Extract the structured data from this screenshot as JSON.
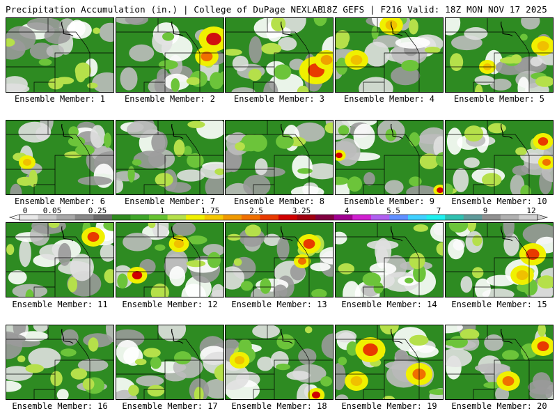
{
  "header": {
    "left_title": "Precipitation Accumulation (in.) | College of DuPage NEXLAB",
    "right_title": "18Z GEFS | F216 Valid: 18Z MON NOV 17 2025"
  },
  "colorbar": {
    "labels": [
      "0",
      "0.05",
      "0.25",
      "1",
      "1.75",
      "2.5",
      "3.25",
      "4",
      "5.5",
      "7",
      "9",
      "12"
    ],
    "colors": [
      "#e8e8e8",
      "#c8c8c8",
      "#a8a8a8",
      "#888888",
      "#6a6a6a",
      "#2f8a1f",
      "#3fa52a",
      "#66c232",
      "#b5e04a",
      "#f0f000",
      "#f5c800",
      "#f09a00",
      "#f07000",
      "#e83a00",
      "#d00000",
      "#a00010",
      "#800040",
      "#a00090",
      "#d020d0",
      "#b060f0",
      "#6090ff",
      "#40d0ff",
      "#20f0f0",
      "#30c0b0",
      "#5f9a9a",
      "#909090",
      "#b0b0b0",
      "#d0d0d0"
    ]
  },
  "members": [
    {
      "label": "Ensemble Member: 1"
    },
    {
      "label": "Ensemble Member: 2"
    },
    {
      "label": "Ensemble Member: 3"
    },
    {
      "label": "Ensemble Member: 4"
    },
    {
      "label": "Ensemble Member: 5"
    },
    {
      "label": "Ensemble Member: 6"
    },
    {
      "label": "Ensemble Member: 7"
    },
    {
      "label": "Ensemble Member: 8"
    },
    {
      "label": "Ensemble Member: 9"
    },
    {
      "label": "Ensemble Member: 10"
    },
    {
      "label": "Ensemble Member: 11"
    },
    {
      "label": "Ensemble Member: 12"
    },
    {
      "label": "Ensemble Member: 13"
    },
    {
      "label": "Ensemble Member: 14"
    },
    {
      "label": "Ensemble Member: 15"
    },
    {
      "label": "Ensemble Member: 16"
    },
    {
      "label": "Ensemble Member: 17"
    },
    {
      "label": "Ensemble Member: 18"
    },
    {
      "label": "Ensemble Member: 19"
    },
    {
      "label": "Ensemble Member: 20"
    }
  ]
}
